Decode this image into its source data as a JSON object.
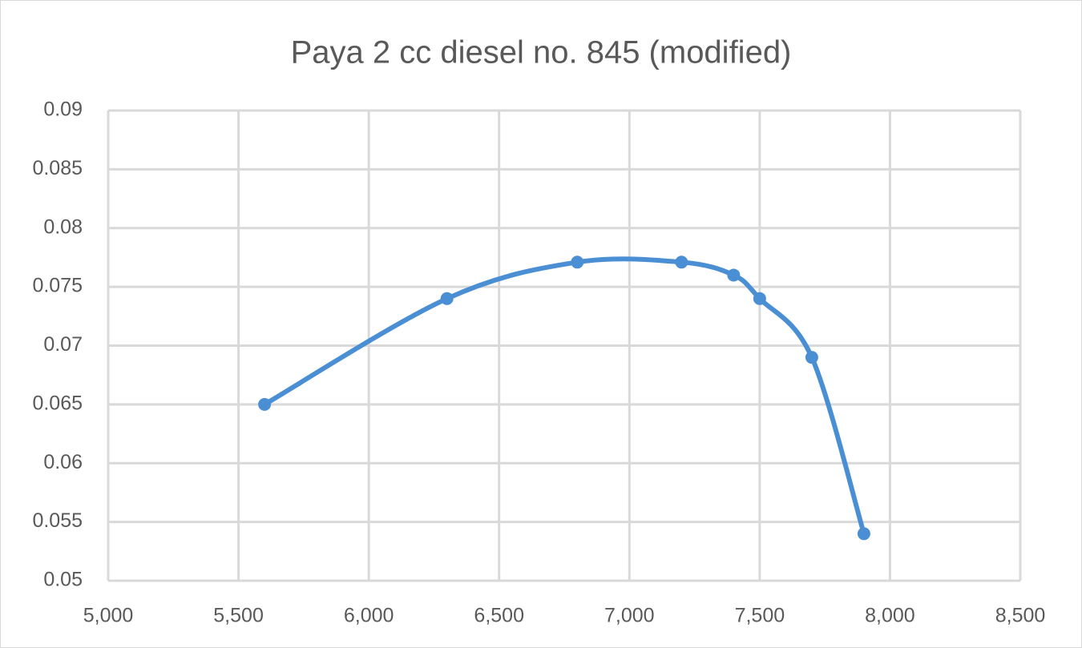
{
  "chart_data": {
    "type": "scatter",
    "smooth": true,
    "title": "Paya 2 cc diesel no. 845 (modified)",
    "x": [
      5600,
      6300,
      6800,
      7200,
      7400,
      7500,
      7700,
      7900
    ],
    "series": [
      {
        "color": "#4a8fd4",
        "values": [
          0.065,
          0.074,
          0.0771,
          0.0771,
          0.076,
          0.074,
          0.069,
          0.054
        ]
      }
    ],
    "xlim": [
      5000,
      8500
    ],
    "xticks": [
      {
        "value": 5000,
        "label": "5,000"
      },
      {
        "value": 5500,
        "label": "5,500"
      },
      {
        "value": 6000,
        "label": "6,000"
      },
      {
        "value": 6500,
        "label": "6,500"
      },
      {
        "value": 7000,
        "label": "7,000"
      },
      {
        "value": 7500,
        "label": "7,500"
      },
      {
        "value": 8000,
        "label": "8,000"
      },
      {
        "value": 8500,
        "label": "8,500"
      }
    ],
    "ylim": [
      0.05,
      0.09
    ],
    "yticks": [
      0.05,
      0.055,
      0.06,
      0.065,
      0.07,
      0.075,
      0.08,
      0.085,
      0.09
    ],
    "grid": true
  }
}
